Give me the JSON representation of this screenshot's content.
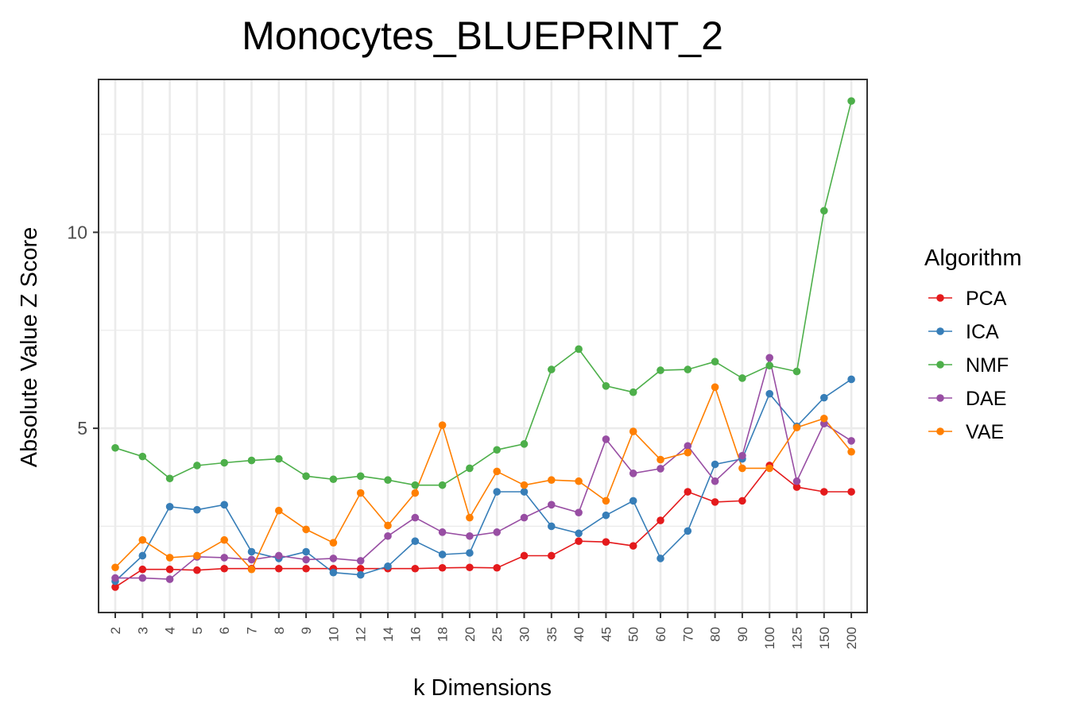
{
  "chart_data": {
    "type": "line",
    "title": "Monocytes_BLUEPRINT_2",
    "xlabel": "k Dimensions",
    "ylabel": "Absolute Value Z Score",
    "categories": [
      "2",
      "3",
      "4",
      "5",
      "6",
      "7",
      "8",
      "9",
      "10",
      "12",
      "14",
      "16",
      "18",
      "20",
      "25",
      "30",
      "35",
      "40",
      "45",
      "50",
      "60",
      "70",
      "80",
      "90",
      "100",
      "125",
      "150",
      "200"
    ],
    "ylim": [
      0.3,
      13.9
    ],
    "yticks": [
      5,
      10
    ],
    "yticks_label": [
      "5",
      "10"
    ],
    "grid": true,
    "legend": {
      "title": "Algorithm",
      "position": "right"
    },
    "series": [
      {
        "name": "PCA",
        "color": "#E41A1C",
        "values": [
          0.95,
          1.4,
          1.4,
          1.38,
          1.42,
          1.42,
          1.42,
          1.42,
          1.42,
          1.42,
          1.42,
          1.42,
          1.44,
          1.45,
          1.44,
          1.75,
          1.75,
          2.12,
          2.1,
          2.0,
          2.65,
          3.38,
          3.12,
          3.15,
          4.05,
          3.5,
          3.38,
          3.38
        ]
      },
      {
        "name": "ICA",
        "color": "#377EB8",
        "values": [
          1.1,
          1.75,
          3.0,
          2.92,
          3.05,
          1.85,
          1.68,
          1.85,
          1.32,
          1.26,
          1.48,
          2.12,
          1.78,
          1.82,
          3.38,
          3.38,
          2.5,
          2.32,
          2.78,
          3.15,
          1.68,
          2.38,
          4.08,
          4.22,
          5.88,
          5.05,
          5.78,
          6.25
        ]
      },
      {
        "name": "NMF",
        "color": "#4DAF4A",
        "values": [
          4.5,
          4.28,
          3.72,
          4.05,
          4.12,
          4.18,
          4.22,
          3.78,
          3.7,
          3.78,
          3.68,
          3.55,
          3.55,
          3.98,
          4.45,
          4.6,
          6.5,
          7.02,
          6.08,
          5.92,
          6.48,
          6.5,
          6.7,
          6.28,
          6.6,
          6.45,
          10.55,
          13.35
        ]
      },
      {
        "name": "DAE",
        "color": "#984EA3",
        "values": [
          1.18,
          1.18,
          1.15,
          1.72,
          1.7,
          1.65,
          1.75,
          1.65,
          1.68,
          1.62,
          2.25,
          2.72,
          2.35,
          2.25,
          2.35,
          2.72,
          3.05,
          2.85,
          4.72,
          3.85,
          3.97,
          4.55,
          3.65,
          4.3,
          6.8,
          3.65,
          5.12,
          4.68
        ]
      },
      {
        "name": "VAE",
        "color": "#FF7F00",
        "values": [
          1.45,
          2.15,
          1.7,
          1.75,
          2.15,
          1.4,
          2.9,
          2.42,
          2.08,
          3.35,
          2.52,
          3.35,
          5.08,
          2.72,
          3.9,
          3.55,
          3.68,
          3.65,
          3.15,
          4.92,
          4.2,
          4.38,
          6.05,
          3.98,
          3.98,
          5.02,
          5.25,
          4.4
        ]
      }
    ]
  }
}
